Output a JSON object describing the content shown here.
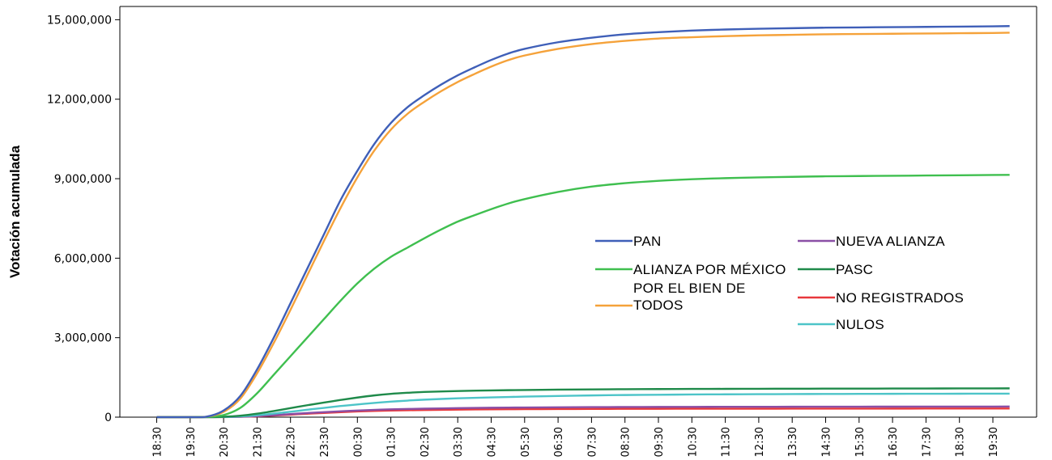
{
  "chart_data": {
    "type": "line",
    "title": "",
    "xlabel": "",
    "ylabel": "Votación acumulada",
    "ylim": [
      0,
      15500000
    ],
    "y_ticks": [
      0,
      3000000,
      6000000,
      9000000,
      12000000,
      15000000
    ],
    "y_tick_labels": [
      "0",
      "3,000,000",
      "6,000,000",
      "9,000,000",
      "12,000,000",
      "15,000,000"
    ],
    "grid": false,
    "legend_position": "center-right",
    "x": [
      "18:30",
      "19:30",
      "20:30",
      "21:30",
      "22:30",
      "23:30",
      "00:30",
      "01:30",
      "02:30",
      "03:30",
      "04:30",
      "05:30",
      "06:30",
      "07:30",
      "08:30",
      "09:30",
      "10:30",
      "11:30",
      "12:30",
      "13:30",
      "14:30",
      "15:30",
      "16:30",
      "17:30",
      "18:30",
      "19:30"
    ],
    "series": [
      {
        "name": "PAN",
        "color": "#3f5fb8",
        "points": [
          [
            "18:30",
            0
          ],
          [
            "19:30",
            0
          ],
          [
            "20:00",
            20000
          ],
          [
            "20:30",
            250000
          ],
          [
            "21:00",
            800000
          ],
          [
            "21:30",
            1800000
          ],
          [
            "22:00",
            3000000
          ],
          [
            "22:30",
            4300000
          ],
          [
            "23:00",
            5600000
          ],
          [
            "23:30",
            6900000
          ],
          [
            "00:00",
            8200000
          ],
          [
            "00:30",
            9300000
          ],
          [
            "01:00",
            10300000
          ],
          [
            "01:30",
            11100000
          ],
          [
            "02:00",
            11700000
          ],
          [
            "02:30",
            12150000
          ],
          [
            "03:00",
            12550000
          ],
          [
            "03:30",
            12900000
          ],
          [
            "04:00",
            13200000
          ],
          [
            "04:30",
            13480000
          ],
          [
            "05:00",
            13720000
          ],
          [
            "05:30",
            13900000
          ],
          [
            "06:30",
            14150000
          ],
          [
            "07:30",
            14320000
          ],
          [
            "08:30",
            14450000
          ],
          [
            "09:30",
            14530000
          ],
          [
            "10:30",
            14590000
          ],
          [
            "11:30",
            14630000
          ],
          [
            "12:30",
            14660000
          ],
          [
            "13:30",
            14680000
          ],
          [
            "14:30",
            14700000
          ],
          [
            "15:30",
            14710000
          ],
          [
            "16:30",
            14720000
          ],
          [
            "17:30",
            14730000
          ],
          [
            "18:30",
            14740000
          ],
          [
            "19:30",
            14750000
          ],
          [
            "20:00",
            14760000
          ]
        ]
      },
      {
        "name": "ALIANZA POR MÉXICO",
        "color": "#3fbf4f",
        "points": [
          [
            "18:30",
            0
          ],
          [
            "19:30",
            0
          ],
          [
            "20:00",
            10000
          ],
          [
            "20:30",
            80000
          ],
          [
            "21:00",
            350000
          ],
          [
            "21:30",
            900000
          ],
          [
            "22:00",
            1600000
          ],
          [
            "22:30",
            2300000
          ],
          [
            "23:00",
            3000000
          ],
          [
            "23:30",
            3700000
          ],
          [
            "00:00",
            4400000
          ],
          [
            "00:30",
            5050000
          ],
          [
            "01:00",
            5600000
          ],
          [
            "01:30",
            6050000
          ],
          [
            "02:00",
            6400000
          ],
          [
            "02:30",
            6750000
          ],
          [
            "03:00",
            7080000
          ],
          [
            "03:30",
            7380000
          ],
          [
            "04:00",
            7620000
          ],
          [
            "04:30",
            7850000
          ],
          [
            "05:00",
            8060000
          ],
          [
            "05:30",
            8230000
          ],
          [
            "06:30",
            8500000
          ],
          [
            "07:30",
            8700000
          ],
          [
            "08:30",
            8830000
          ],
          [
            "09:30",
            8920000
          ],
          [
            "10:30",
            8980000
          ],
          [
            "11:30",
            9020000
          ],
          [
            "12:30",
            9050000
          ],
          [
            "13:30",
            9070000
          ],
          [
            "14:30",
            9090000
          ],
          [
            "15:30",
            9100000
          ],
          [
            "16:30",
            9110000
          ],
          [
            "17:30",
            9120000
          ],
          [
            "18:30",
            9130000
          ],
          [
            "19:30",
            9140000
          ],
          [
            "20:00",
            9145000
          ]
        ]
      },
      {
        "name": "POR EL BIEN DE TODOS",
        "color": "#f5a23a",
        "points": [
          [
            "18:30",
            0
          ],
          [
            "19:30",
            0
          ],
          [
            "20:00",
            20000
          ],
          [
            "20:30",
            200000
          ],
          [
            "21:00",
            700000
          ],
          [
            "21:30",
            1650000
          ],
          [
            "22:00",
            2800000
          ],
          [
            "22:30",
            4050000
          ],
          [
            "23:00",
            5350000
          ],
          [
            "23:30",
            6650000
          ],
          [
            "00:00",
            7900000
          ],
          [
            "00:30",
            9050000
          ],
          [
            "01:00",
            10050000
          ],
          [
            "01:30",
            10850000
          ],
          [
            "02:00",
            11450000
          ],
          [
            "02:30",
            11900000
          ],
          [
            "03:00",
            12300000
          ],
          [
            "03:30",
            12650000
          ],
          [
            "04:00",
            12950000
          ],
          [
            "04:30",
            13230000
          ],
          [
            "05:00",
            13470000
          ],
          [
            "05:30",
            13650000
          ],
          [
            "06:30",
            13900000
          ],
          [
            "07:30",
            14080000
          ],
          [
            "08:30",
            14200000
          ],
          [
            "09:30",
            14290000
          ],
          [
            "10:30",
            14340000
          ],
          [
            "11:30",
            14380000
          ],
          [
            "12:30",
            14410000
          ],
          [
            "13:30",
            14430000
          ],
          [
            "14:30",
            14450000
          ],
          [
            "15:30",
            14460000
          ],
          [
            "16:30",
            14470000
          ],
          [
            "17:30",
            14480000
          ],
          [
            "18:30",
            14490000
          ],
          [
            "19:30",
            14500000
          ],
          [
            "20:00",
            14510000
          ]
        ]
      },
      {
        "name": "NUEVA ALIANZA",
        "color": "#8a4fa6",
        "points": [
          [
            "18:30",
            0
          ],
          [
            "19:30",
            0
          ],
          [
            "20:30",
            5000
          ],
          [
            "21:00",
            15000
          ],
          [
            "21:30",
            40000
          ],
          [
            "22:00",
            75000
          ],
          [
            "22:30",
            115000
          ],
          [
            "23:00",
            155000
          ],
          [
            "23:30",
            190000
          ],
          [
            "00:30",
            250000
          ],
          [
            "01:30",
            295000
          ],
          [
            "02:30",
            320000
          ],
          [
            "03:30",
            340000
          ],
          [
            "04:30",
            355000
          ],
          [
            "05:30",
            365000
          ],
          [
            "06:30",
            372000
          ],
          [
            "07:30",
            378000
          ],
          [
            "08:30",
            382000
          ],
          [
            "09:30",
            385000
          ],
          [
            "10:30",
            388000
          ],
          [
            "11:30",
            390000
          ],
          [
            "12:30",
            392000
          ],
          [
            "13:30",
            393000
          ],
          [
            "14:30",
            395000
          ],
          [
            "15:30",
            396000
          ],
          [
            "16:30",
            397000
          ],
          [
            "17:30",
            398000
          ],
          [
            "18:30",
            399000
          ],
          [
            "19:30",
            400000
          ],
          [
            "20:00",
            401000
          ]
        ]
      },
      {
        "name": "PASC",
        "color": "#1f8a4a",
        "points": [
          [
            "18:30",
            0
          ],
          [
            "19:30",
            0
          ],
          [
            "20:00",
            2000
          ],
          [
            "20:30",
            15000
          ],
          [
            "21:00",
            55000
          ],
          [
            "21:30",
            130000
          ],
          [
            "22:00",
            230000
          ],
          [
            "22:30",
            340000
          ],
          [
            "23:00",
            450000
          ],
          [
            "23:30",
            550000
          ],
          [
            "00:00",
            650000
          ],
          [
            "00:30",
            740000
          ],
          [
            "01:00",
            820000
          ],
          [
            "01:30",
            880000
          ],
          [
            "02:00",
            920000
          ],
          [
            "02:30",
            950000
          ],
          [
            "03:30",
            985000
          ],
          [
            "04:30",
            1010000
          ],
          [
            "05:30",
            1025000
          ],
          [
            "06:30",
            1038000
          ],
          [
            "07:30",
            1048000
          ],
          [
            "08:30",
            1055000
          ],
          [
            "09:30",
            1060000
          ],
          [
            "10:30",
            1065000
          ],
          [
            "11:30",
            1068000
          ],
          [
            "12:30",
            1071000
          ],
          [
            "13:30",
            1074000
          ],
          [
            "14:30",
            1076000
          ],
          [
            "15:30",
            1078000
          ],
          [
            "16:30",
            1080000
          ],
          [
            "17:30",
            1082000
          ],
          [
            "18:30",
            1084000
          ],
          [
            "19:30",
            1086000
          ],
          [
            "20:00",
            1087000
          ]
        ]
      },
      {
        "name": "NO REGISTRADOS",
        "color": "#e8383c",
        "points": [
          [
            "18:30",
            0
          ],
          [
            "19:30",
            0
          ],
          [
            "20:30",
            4000
          ],
          [
            "21:00",
            12000
          ],
          [
            "21:30",
            30000
          ],
          [
            "22:00",
            60000
          ],
          [
            "22:30",
            95000
          ],
          [
            "23:00",
            130000
          ],
          [
            "23:30",
            160000
          ],
          [
            "00:30",
            215000
          ],
          [
            "01:30",
            250000
          ],
          [
            "02:30",
            270000
          ],
          [
            "03:30",
            285000
          ],
          [
            "04:30",
            295000
          ],
          [
            "05:30",
            302000
          ],
          [
            "06:30",
            307000
          ],
          [
            "07:30",
            311000
          ],
          [
            "08:30",
            314000
          ],
          [
            "09:30",
            316000
          ],
          [
            "10:30",
            318000
          ],
          [
            "11:30",
            319000
          ],
          [
            "12:30",
            320000
          ],
          [
            "13:30",
            321000
          ],
          [
            "14:30",
            322000
          ],
          [
            "15:30",
            323000
          ],
          [
            "16:30",
            324000
          ],
          [
            "17:30",
            325000
          ],
          [
            "18:30",
            325500
          ],
          [
            "19:30",
            326000
          ],
          [
            "20:00",
            326500
          ]
        ]
      },
      {
        "name": "NULOS",
        "color": "#4dc4c8",
        "points": [
          [
            "18:30",
            0
          ],
          [
            "19:30",
            0
          ],
          [
            "20:00",
            1000
          ],
          [
            "20:30",
            8000
          ],
          [
            "21:00",
            30000
          ],
          [
            "21:30",
            75000
          ],
          [
            "22:00",
            135000
          ],
          [
            "22:30",
            205000
          ],
          [
            "23:00",
            280000
          ],
          [
            "23:30",
            350000
          ],
          [
            "00:00",
            420000
          ],
          [
            "00:30",
            480000
          ],
          [
            "01:00",
            535000
          ],
          [
            "01:30",
            585000
          ],
          [
            "02:00",
            625000
          ],
          [
            "02:30",
            660000
          ],
          [
            "03:30",
            710000
          ],
          [
            "04:30",
            745000
          ],
          [
            "05:30",
            775000
          ],
          [
            "06:30",
            800000
          ],
          [
            "07:30",
            820000
          ],
          [
            "08:30",
            835000
          ],
          [
            "09:30",
            845000
          ],
          [
            "10:30",
            855000
          ],
          [
            "11:30",
            862000
          ],
          [
            "12:30",
            867000
          ],
          [
            "13:30",
            871000
          ],
          [
            "14:30",
            875000
          ],
          [
            "15:30",
            878000
          ],
          [
            "16:30",
            881000
          ],
          [
            "17:30",
            883000
          ],
          [
            "18:30",
            885000
          ],
          [
            "19:30",
            887000
          ],
          [
            "20:00",
            888000
          ]
        ]
      }
    ],
    "legend": {
      "columns": [
        [
          {
            "label": "PAN",
            "series": "PAN"
          },
          {
            "label": "ALIANZA POR MÉXICO",
            "series": "ALIANZA POR MÉXICO"
          },
          {
            "label_lines": [
              "POR EL BIEN DE",
              "TODOS"
            ],
            "series": "POR EL BIEN DE TODOS"
          }
        ],
        [
          {
            "label": "NUEVA ALIANZA",
            "series": "NUEVA ALIANZA"
          },
          {
            "label": "PASC",
            "series": "PASC"
          },
          {
            "label": "NO REGISTRADOS",
            "series": "NO REGISTRADOS"
          },
          {
            "label": "NULOS",
            "series": "NULOS"
          }
        ]
      ]
    }
  }
}
